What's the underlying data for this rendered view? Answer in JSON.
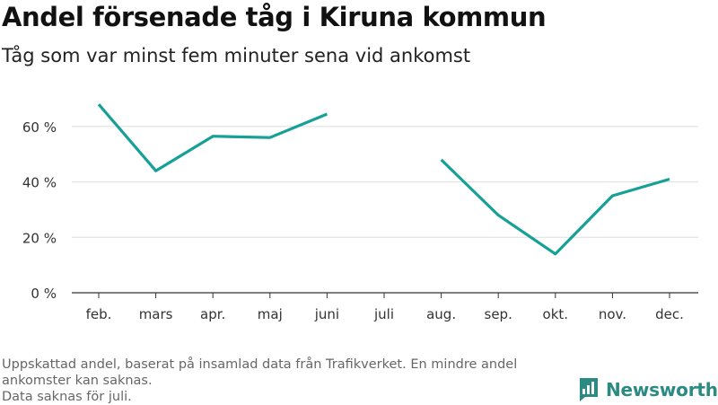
{
  "title": "Andel försenade tåg i Kiruna kommun",
  "subtitle": "Tåg som var minst fem minuter sena vid ankomst",
  "footnote_lines": [
    "Uppskattad andel, baserat på insamlad data från Trafikverket. En mindre andel",
    "ankomster kan saknas.",
    "Data saknas för juli."
  ],
  "brand": {
    "name": "Newsworthy",
    "icon": "bar-chart-logo-icon"
  },
  "colors": {
    "line": "#16a096",
    "grid": "#dddddd",
    "axis": "#333333"
  },
  "chart_data": {
    "type": "line",
    "categories": [
      "feb.",
      "mars",
      "apr.",
      "maj",
      "juni",
      "juli",
      "aug.",
      "sep.",
      "okt.",
      "nov.",
      "dec."
    ],
    "values": [
      68,
      44,
      56.5,
      56,
      64.5,
      null,
      48,
      28,
      14,
      35,
      41
    ],
    "ylim": [
      0,
      70
    ],
    "yticks": [
      0,
      20,
      40,
      60
    ],
    "ytick_labels": [
      "0 %",
      "20 %",
      "40 %",
      "60 %"
    ],
    "grid": true,
    "xlabel": "",
    "ylabel": ""
  }
}
